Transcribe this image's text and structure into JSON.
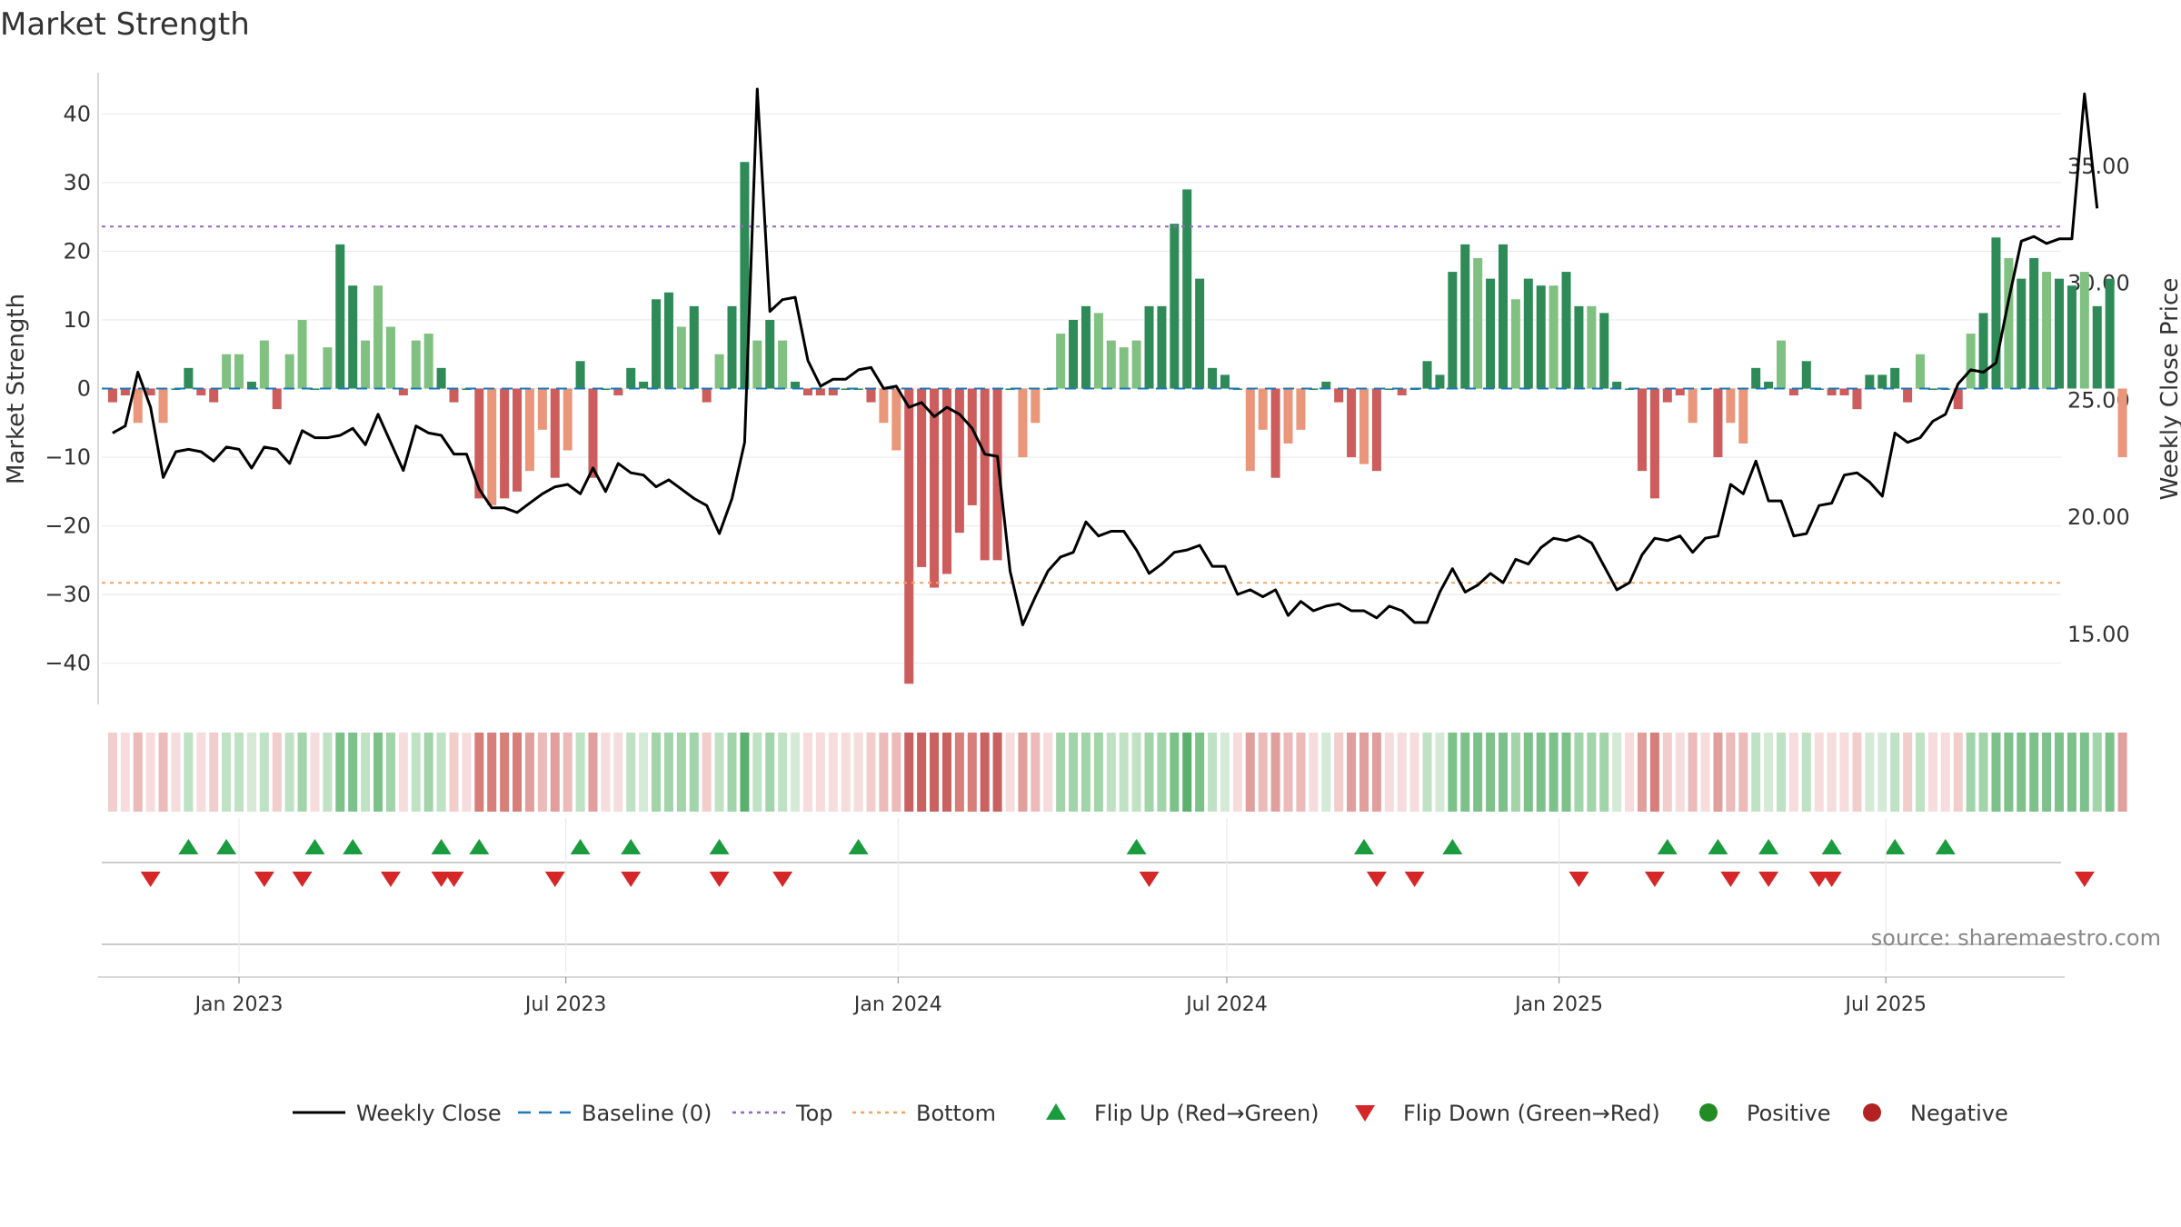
{
  "chart_data": {
    "type": "bar",
    "title": "Market Strength",
    "ylabel": "Market Strength",
    "y2label": "Weekly Close Price",
    "source": "source: sharemaestro.com",
    "ylim": [
      -46,
      46
    ],
    "y2lim": [
      12.0,
      39.0
    ],
    "yticks": [
      40,
      30,
      20,
      10,
      0,
      -10,
      -20,
      -30,
      -40
    ],
    "yticklabels": [
      "40",
      "30",
      "20",
      "10",
      "0",
      "−10",
      "−20",
      "−30",
      "−40"
    ],
    "y2ticks": [
      35.0,
      30.0,
      25.0,
      20.0,
      15.0
    ],
    "y2ticklabels": [
      "35.00",
      "30.00",
      "25.00",
      "20.00",
      "15.00"
    ],
    "xlim": [
      "2022-10-17",
      "2025-10-06"
    ],
    "xticks": [
      "2023-01-01",
      "2023-07-01",
      "2024-01-01",
      "2024-07-01",
      "2025-01-01",
      "2025-07-01"
    ],
    "xticklabels": [
      "Jan 2023",
      "Jul 2023",
      "Jan 2024",
      "Jul 2024",
      "Jan 2025",
      "Jul 2025"
    ],
    "start_week": "2022-10-23",
    "top_level": 23.6,
    "bottom_level": -28.3,
    "strength": [
      -2,
      -1,
      -5,
      -1,
      -5,
      0,
      3,
      -1,
      -2,
      5,
      5,
      1,
      7,
      -3,
      5,
      10,
      0,
      6,
      21,
      15,
      7,
      15,
      9,
      -1,
      7,
      8,
      3,
      -2,
      0,
      -16,
      -17,
      -16,
      -15,
      -12,
      -6,
      -13,
      -9,
      4,
      -13,
      0,
      -1,
      3,
      1,
      13,
      14,
      9,
      12,
      -2,
      5,
      12,
      33,
      7,
      10,
      7,
      1,
      -1,
      -1,
      -1,
      0,
      0,
      -2,
      -5,
      -9,
      -43,
      -26,
      -29,
      -27,
      -21,
      -17,
      -25,
      -25,
      0,
      -10,
      -5,
      0,
      8,
      10,
      12,
      11,
      7,
      6,
      7,
      12,
      12,
      24,
      29,
      16,
      3,
      2,
      0,
      -12,
      -6,
      -13,
      -8,
      -6,
      0,
      1,
      -2,
      -10,
      -11,
      -12,
      0,
      -1,
      0,
      4,
      2,
      17,
      21,
      19,
      16,
      21,
      13,
      16,
      15,
      15,
      17,
      12,
      12,
      11,
      1,
      0,
      -12,
      -16,
      -2,
      -1,
      -5,
      0,
      -10,
      -5,
      -8,
      3,
      1,
      7,
      -1,
      4,
      0,
      -1,
      -1,
      -3,
      2,
      2,
      3,
      -2,
      5,
      0,
      0,
      -3,
      8,
      11,
      22,
      19,
      16,
      19,
      17,
      16,
      15,
      17,
      12,
      16,
      -10
    ],
    "close": [
      23.6,
      23.9,
      26.2,
      24.7,
      21.7,
      22.8,
      22.9,
      22.8,
      22.4,
      23.0,
      22.9,
      22.1,
      23.0,
      22.9,
      22.3,
      23.7,
      23.4,
      23.4,
      23.5,
      23.8,
      23.1,
      24.4,
      23.2,
      22.0,
      23.9,
      23.6,
      23.5,
      22.7,
      22.7,
      21.2,
      20.4,
      20.4,
      20.2,
      20.6,
      21.0,
      21.3,
      21.4,
      21.0,
      22.1,
      21.1,
      22.3,
      21.9,
      21.8,
      21.3,
      21.6,
      21.2,
      20.8,
      20.5,
      19.3,
      20.8,
      23.2,
      38.3,
      28.8,
      29.3,
      29.4,
      26.7,
      25.6,
      25.9,
      25.9,
      26.3,
      26.4,
      25.5,
      25.6,
      24.7,
      24.9,
      24.3,
      24.7,
      24.4,
      23.8,
      22.7,
      22.6,
      17.7,
      15.4,
      16.6,
      17.7,
      18.3,
      18.5,
      19.8,
      19.2,
      19.4,
      19.4,
      18.6,
      17.6,
      18.0,
      18.5,
      18.6,
      18.8,
      17.9,
      17.9,
      16.7,
      16.9,
      16.6,
      16.9,
      15.8,
      16.4,
      16.0,
      16.2,
      16.3,
      16.0,
      16.0,
      15.7,
      16.2,
      16.0,
      15.5,
      15.5,
      16.8,
      17.8,
      16.8,
      17.1,
      17.6,
      17.2,
      18.2,
      18.0,
      18.7,
      19.1,
      19.0,
      19.2,
      18.9,
      17.9,
      16.9,
      17.2,
      18.4,
      19.1,
      19.0,
      19.2,
      18.5,
      19.1,
      19.2,
      21.4,
      21.0,
      22.4,
      20.7,
      20.7,
      19.2,
      19.3,
      20.5,
      20.6,
      21.8,
      21.9,
      21.5,
      20.9,
      23.6,
      23.2,
      23.4,
      24.1,
      24.4,
      25.7,
      26.3,
      26.2,
      26.6,
      29.3,
      31.8,
      32.0,
      31.7,
      31.9,
      31.9,
      38.1,
      33.2
    ],
    "band_colors": [
      "#f6dcdc",
      "#f1cdcc",
      "#ebbab9",
      "#e09f9c",
      "#d77e7a",
      "#c96160",
      "#d4ead7",
      "#bfe2c4",
      "#a2d4aa",
      "#7cc18a",
      "#5daf6f"
    ],
    "series_colors": {
      "strong_positive": "#2e8b57",
      "weak_positive": "#80c181",
      "strong_negative": "#cd5c5c",
      "weak_negative": "#e9967a",
      "close_line": "#000000",
      "baseline": "#1f77b4",
      "top": "#9467bd",
      "bottom": "#f4a460",
      "flip_up": "#1a9c3e",
      "flip_down": "#d62728",
      "positive_dot": "#228b22",
      "negative_dot": "#b22222"
    },
    "flip_up_weeks": [
      6,
      9,
      16,
      19,
      26,
      29,
      37,
      41,
      48,
      59,
      81,
      99,
      106,
      123,
      127,
      131,
      136,
      141,
      145
    ],
    "flip_down_weeks": [
      3,
      12,
      15,
      22,
      26,
      27,
      35,
      41,
      48,
      53,
      82,
      100,
      103,
      116,
      122,
      128,
      131,
      135,
      136,
      156
    ],
    "legend": [
      {
        "label": "Weekly Close",
        "marker": "line"
      },
      {
        "label": "Baseline (0)",
        "marker": "dash"
      },
      {
        "label": "Top",
        "marker": "dot-line"
      },
      {
        "label": "Bottom",
        "marker": "dot-line"
      },
      {
        "label": "Flip Up (Red→Green)",
        "marker": "triangle-up"
      },
      {
        "label": "Flip Down (Green→Red)",
        "marker": "triangle-down"
      },
      {
        "label": "Positive",
        "marker": "circle"
      },
      {
        "label": "Negative",
        "marker": "circle"
      }
    ]
  }
}
